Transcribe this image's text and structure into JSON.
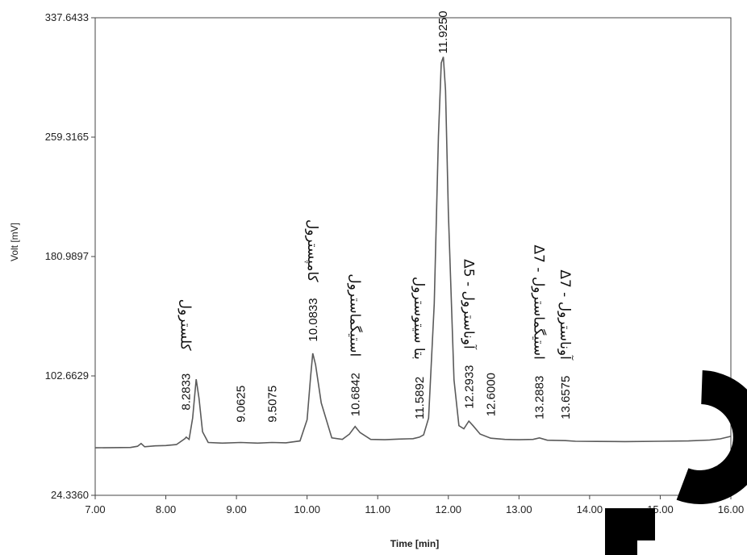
{
  "chart_data": {
    "type": "line",
    "xlabel": "Time [min]",
    "ylabel": "Volt [mV]",
    "xlim": [
      7.0,
      16.0
    ],
    "ylim": [
      24.336,
      337.6433
    ],
    "xticks": [
      "7.00",
      "8.00",
      "9.00",
      "10.00",
      "11.00",
      "12.00",
      "13.00",
      "14.00",
      "15.00",
      "16.00"
    ],
    "yticks": [
      "24.3360",
      "102.6629",
      "180.9897",
      "259.3165",
      "337.6433"
    ],
    "grid": false,
    "series": [
      {
        "x": [
          7.0,
          7.5,
          7.6,
          7.65,
          7.7,
          7.85,
          8.0,
          8.15,
          8.27,
          8.29,
          8.33,
          8.38,
          8.43,
          8.47,
          8.52,
          8.6,
          8.8,
          9.06,
          9.3,
          9.5,
          9.7,
          9.9,
          10.0,
          10.05,
          10.08,
          10.12,
          10.2,
          10.35,
          10.5,
          10.6,
          10.68,
          10.75,
          10.9,
          11.1,
          11.3,
          11.5,
          11.59,
          11.65,
          11.72,
          11.8,
          11.86,
          11.9,
          11.93,
          11.96,
          12.0,
          12.08,
          12.15,
          12.22,
          12.29,
          12.35,
          12.45,
          12.6,
          12.8,
          13.0,
          13.2,
          13.29,
          13.4,
          13.66,
          13.8,
          14.1,
          14.5,
          15.0,
          15.4,
          15.7,
          15.85,
          16.0
        ],
        "y": [
          55.5,
          55.7,
          56.5,
          58.3,
          56.2,
          56.8,
          57.0,
          57.6,
          61.5,
          62.5,
          61.0,
          75.0,
          100.5,
          88.0,
          66.0,
          59.0,
          58.6,
          59.0,
          58.6,
          59.0,
          58.8,
          60.0,
          74.0,
          102.0,
          117.5,
          110.0,
          85.0,
          62.0,
          61.0,
          64.5,
          69.5,
          65.5,
          61.0,
          60.8,
          61.2,
          61.5,
          62.5,
          64.0,
          75.0,
          150.0,
          260.0,
          308.0,
          312.0,
          290.0,
          210.0,
          100.0,
          70.0,
          68.0,
          73.0,
          70.0,
          64.5,
          61.8,
          61.0,
          60.8,
          61.0,
          62.0,
          60.5,
          60.2,
          59.8,
          59.7,
          59.6,
          59.8,
          60.0,
          60.6,
          61.4,
          63.0
        ]
      }
    ],
    "peaks": [
      {
        "time": "8.2833",
        "x": 8.2833,
        "y": 78.0,
        "name": "کلسترول"
      },
      {
        "time": "9.0625",
        "x": 9.0625,
        "y": 70.0,
        "name": ""
      },
      {
        "time": "9.5075",
        "x": 9.5075,
        "y": 70.0,
        "name": ""
      },
      {
        "time": "10.0833",
        "x": 10.0833,
        "y": 123.0,
        "name": "کامپسترول"
      },
      {
        "time": "10.6842",
        "x": 10.6842,
        "y": 74.0,
        "name": "استیگماسترول"
      },
      {
        "time": "11.5892",
        "x": 11.5892,
        "y": 72.0,
        "name": "بتا سیتوسترول"
      },
      {
        "time": "11.9250",
        "x": 11.925,
        "y": 312.0,
        "name": ""
      },
      {
        "time": "12.2933",
        "x": 12.2933,
        "y": 79.0,
        "name": "Δ5 - آوناسترول"
      },
      {
        "time": "12.6000",
        "x": 12.6,
        "y": 74.0,
        "name": ""
      },
      {
        "time": "13.2883",
        "x": 13.2883,
        "y": 72.0,
        "name": "Δ7 - استیگماسترول"
      },
      {
        "time": "13.6575",
        "x": 13.6575,
        "y": 72.0,
        "name": "Δ7 - آوناسترول"
      }
    ],
    "colors": {
      "line": "#5a5a5a",
      "axes": "#444444",
      "watermark": "#000000"
    }
  }
}
